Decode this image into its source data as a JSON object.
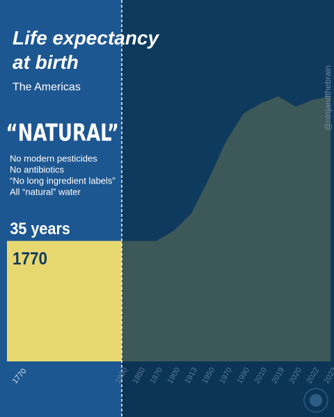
{
  "chart_data": {
    "type": "area",
    "title": "Life expectancy at birth",
    "subtitle": "The Americas",
    "heading": "“NATURAL”",
    "notes": [
      "No modern pesticides",
      "No antibiotics",
      "“No long ingredient labels”",
      "All “natural” water"
    ],
    "baseline": {
      "category": "1770",
      "value": 35,
      "value_label": "35 years",
      "color": "#e8d870"
    },
    "categories": [
      "1830",
      "1850",
      "1870",
      "1900",
      "1913",
      "1950",
      "1970",
      "1990",
      "2010",
      "2019",
      "2020",
      "2022",
      "2023"
    ],
    "values": [
      35,
      35,
      35,
      38,
      43,
      53,
      64,
      72,
      75,
      77,
      74,
      76,
      77
    ],
    "color": "#3d5858",
    "ylim": [
      0,
      105
    ],
    "watermark": "@ninjandthebrain"
  }
}
